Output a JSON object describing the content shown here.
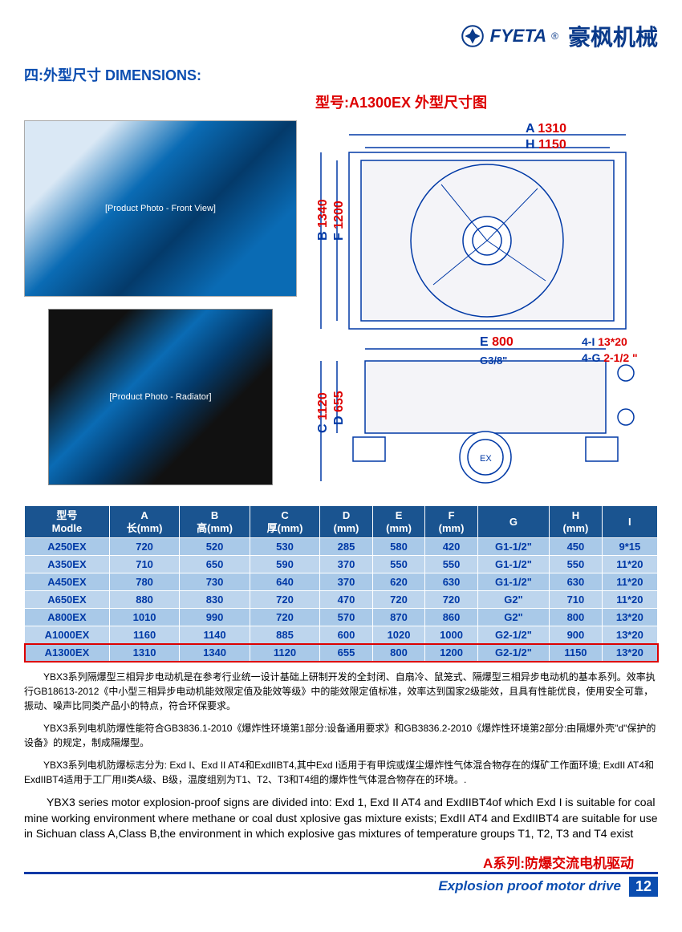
{
  "header": {
    "brand_en": "FYETA",
    "brand_cn": "豪枫机械",
    "logo_color": "#0a3a8a"
  },
  "section_title": "四:外型尺寸 DIMENSIONS:",
  "subtitle": "型号:A1300EX 外型尺寸图",
  "dimensions": {
    "A_label": "A",
    "A_value": "1310",
    "H_label": "H",
    "H_value": "1150",
    "B_label": "B",
    "B_value": "1340",
    "F_label": "F",
    "F_value": "1200",
    "E_label": "E",
    "E_value": "800",
    "C_label": "C",
    "C_value": "1120",
    "D_label": "D",
    "D_value": "655",
    "I_label": "4-I",
    "I_value": "13*20",
    "G_label": "4-G",
    "G_value": "2-1/2 \"",
    "G38": "G3/8\"",
    "line_color": "#0039a6",
    "accent_color": "#d00"
  },
  "table": {
    "headers": [
      {
        "l1": "型号",
        "l2": "Modle"
      },
      {
        "l1": "A",
        "l2": "长(mm)"
      },
      {
        "l1": "B",
        "l2": "高(mm)"
      },
      {
        "l1": "C",
        "l2": "厚(mm)"
      },
      {
        "l1": "D",
        "l2": "(mm)"
      },
      {
        "l1": "E",
        "l2": "(mm)"
      },
      {
        "l1": "F",
        "l2": "(mm)"
      },
      {
        "l1": "G",
        "l2": ""
      },
      {
        "l1": "H",
        "l2": "(mm)"
      },
      {
        "l1": "I",
        "l2": ""
      }
    ],
    "rows": [
      [
        "A250EX",
        "720",
        "520",
        "530",
        "285",
        "580",
        "420",
        "G1-1/2\"",
        "450",
        "9*15"
      ],
      [
        "A350EX",
        "710",
        "650",
        "590",
        "370",
        "550",
        "550",
        "G1-1/2\"",
        "550",
        "11*20"
      ],
      [
        "A450EX",
        "780",
        "730",
        "640",
        "370",
        "620",
        "630",
        "G1-1/2\"",
        "630",
        "11*20"
      ],
      [
        "A650EX",
        "880",
        "830",
        "720",
        "470",
        "720",
        "720",
        "G2\"",
        "710",
        "11*20"
      ],
      [
        "A800EX",
        "1010",
        "990",
        "720",
        "570",
        "870",
        "860",
        "G2\"",
        "800",
        "13*20"
      ],
      [
        "A1000EX",
        "1160",
        "1140",
        "885",
        "600",
        "1020",
        "1000",
        "G2-1/2\"",
        "900",
        "13*20"
      ],
      [
        "A1300EX",
        "1310",
        "1340",
        "1120",
        "655",
        "800",
        "1200",
        "G2-1/2\"",
        "1150",
        "13*20"
      ]
    ],
    "highlight_index": 6,
    "header_bg": "#1a5490",
    "row_bg_odd": "#a9c9e8",
    "row_bg_even": "#bdd5ed"
  },
  "desc_cn_1": "YBX3系列隔爆型三相异步电动机是在参考行业统一设计基础上研制开发的全封闭、自扇冷、鼠笼式、隔爆型三相异步电动机的基本系列。效率执行GB18613-2012《中小型三相异步电动机能效限定值及能效等级》中的能效限定值标准，效率达到国家2级能效，且具有性能优良，使用安全可靠，振动、噪声比同类产品小的特点，符合环保要求。",
  "desc_cn_2": "YBX3系列电机防爆性能符合GB3836.1-2010《爆炸性环境第1部分:设备通用要求》和GB3836.2-2010《爆炸性环境第2部分:由隔爆外壳\"d\"保护的设备》的规定，制成隔爆型。",
  "desc_cn_3": "YBX3系列电机防爆标志分为: Exd I、Exd II AT4和ExdIIBT4,其中Exd I适用于有甲烷或煤尘爆炸性气体混合物存在的煤矿工作面环境; ExdII AT4和ExdIIBT4适用于工厂用II类A级、B级，温度组别为T1、T2、T3和T4组的爆炸性气体混合物存在的环境。.",
  "desc_en": "YBX3 series motor explosion-proof signs are divided into: Exd 1, Exd II AT4 and ExdIIBT4of which Exd I is suitable for coal mine working environment where methane or coal dust xplosive gas mixture exists; ExdII AT4 and ExdIIBT4 are suitable for use in Sichuan class A,Class B,the environment in which explosive gas mixtures of temperature groups T1, T2, T3 and T4 exist",
  "footer": {
    "cn": "A系列:防爆交流电机驱动",
    "en": "Explosion proof motor drive",
    "page": "12"
  }
}
